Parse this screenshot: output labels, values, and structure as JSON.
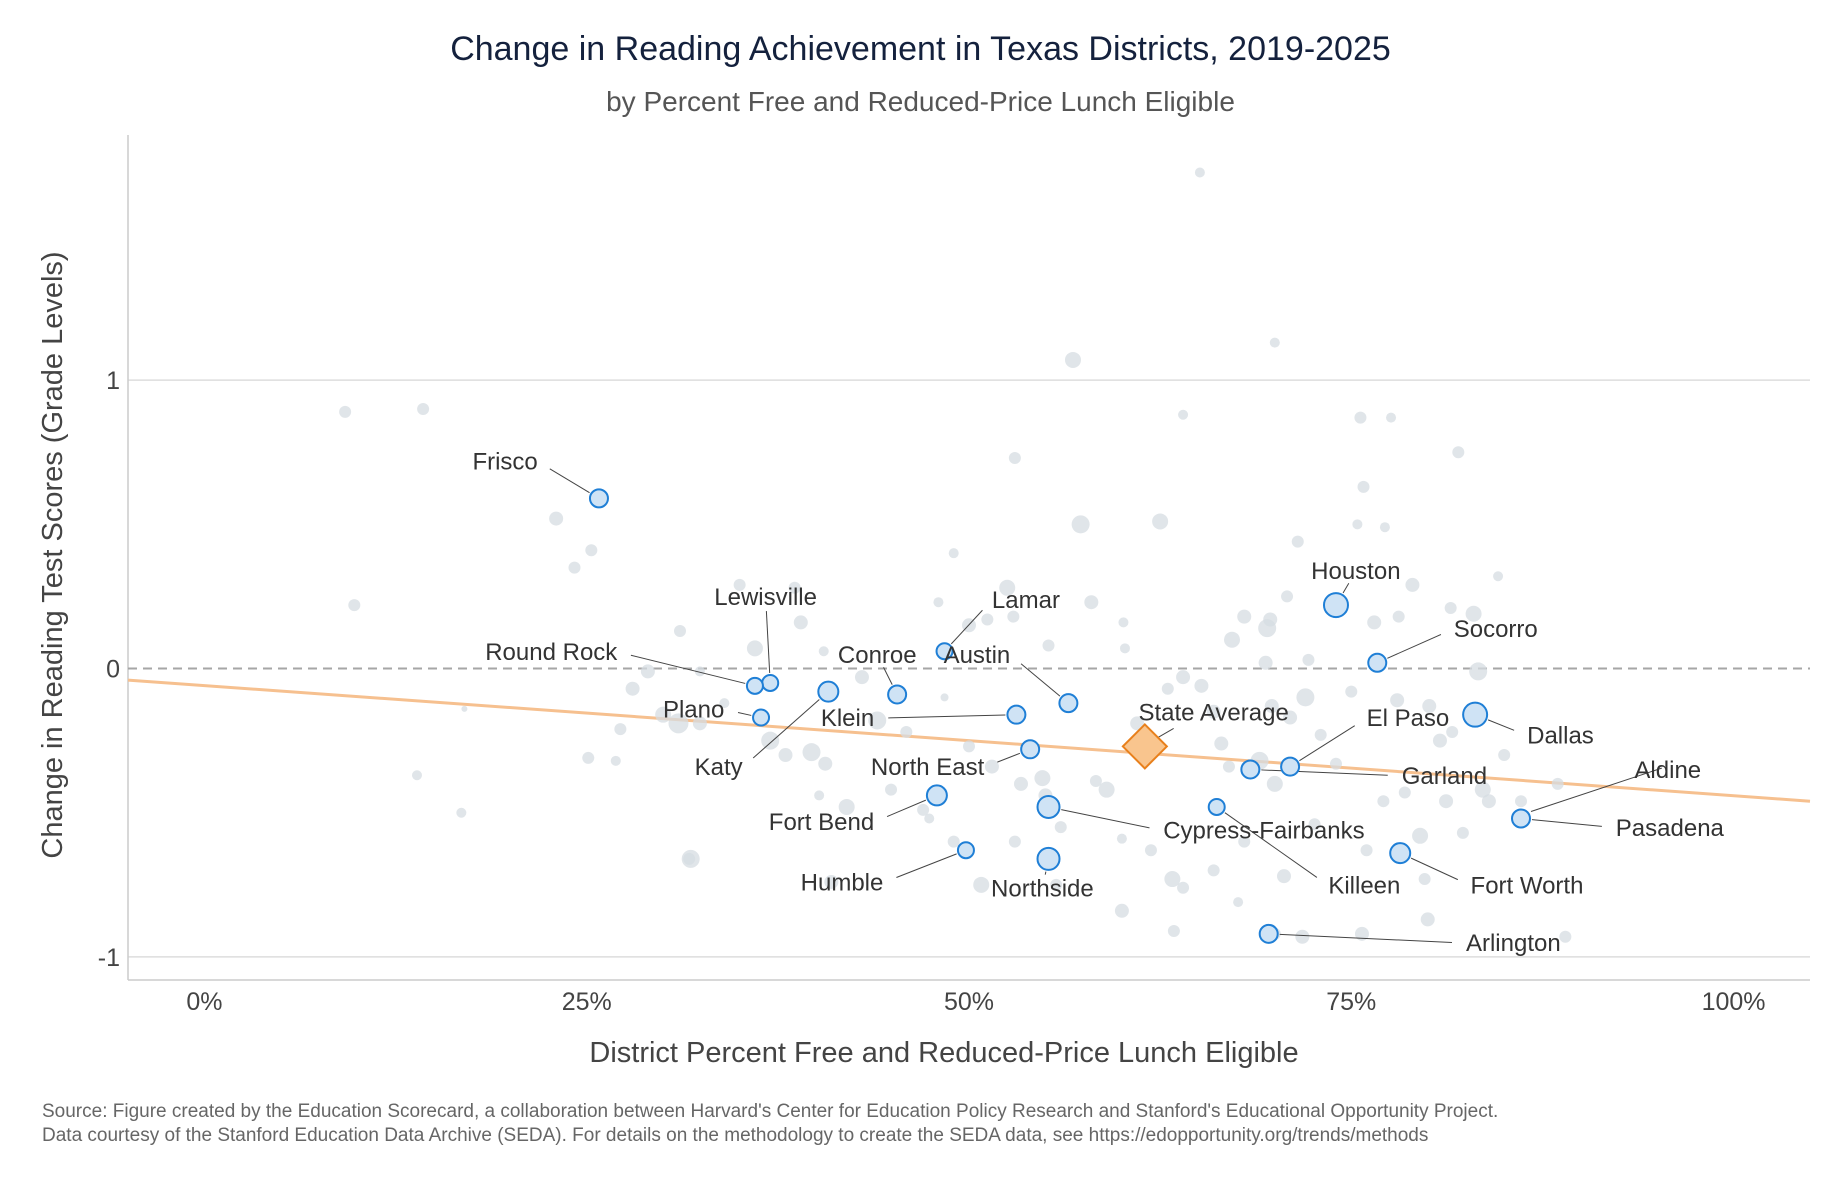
{
  "header": {
    "title": "Change in Reading Achievement in Texas Districts, 2019-2025",
    "subtitle": "by Percent Free and Reduced-Price Lunch Eligible"
  },
  "source": {
    "line1": "Source: Figure created by the Education Scorecard, a collaboration between Harvard's Center for Education Policy Research and Stanford's Educational Opportunity Project.",
    "line2": "Data courtesy of the Stanford Education Data Archive (SEDA). For details on the methodology to create the SEDA data, see https://edopportunity.org/trends/methods"
  },
  "colors": {
    "highlight_fill": "#cfe3f5",
    "highlight_stroke": "#1f7fd6",
    "background_point": "#d5dce2",
    "trend_line": "#f6c08f",
    "state_fill": "#f9c58e",
    "state_stroke": "#e8801c",
    "zero_line": "#a6a6a6",
    "grid": "#dddddd"
  },
  "chart_data": {
    "type": "scatter",
    "title": "Change in Reading Achievement in Texas Districts, 2019-2025",
    "subtitle": "by Percent Free and Reduced-Price Lunch Eligible",
    "xlabel": "District Percent Free and Reduced-Price Lunch Eligible",
    "ylabel": "Change in Reading Test Scores (Grade Levels)",
    "xlim": [
      -0.05,
      1.05
    ],
    "ylim": [
      -1.08,
      1.85
    ],
    "x_ticks": [
      {
        "value": 0,
        "label": "0%"
      },
      {
        "value": 0.25,
        "label": "25%"
      },
      {
        "value": 0.5,
        "label": "50%"
      },
      {
        "value": 0.75,
        "label": "75%"
      },
      {
        "value": 1,
        "label": "100%"
      }
    ],
    "y_ticks": [
      {
        "value": -1,
        "label": "-1"
      },
      {
        "value": 0,
        "label": "0"
      },
      {
        "value": 1,
        "label": "1"
      }
    ],
    "grid": true,
    "reference_line_y": 0,
    "trend_line": {
      "x": [
        -0.05,
        1.05
      ],
      "y": [
        -0.04,
        -0.46
      ]
    },
    "state_average": {
      "label": "State Average",
      "x": 0.615,
      "y": -0.27,
      "label_x": 0.66,
      "label_y": -0.18
    },
    "highlighted": [
      {
        "name": "Frisco",
        "x": 0.258,
        "y": 0.59,
        "size": 9,
        "label_x": 0.218,
        "label_y": 0.69
      },
      {
        "name": "Lewisville",
        "x": 0.37,
        "y": -0.05,
        "size": 8,
        "label_x": 0.367,
        "label_y": 0.22
      },
      {
        "name": "Round Rock",
        "x": 0.36,
        "y": -0.06,
        "size": 8,
        "label_x": 0.27,
        "label_y": 0.03
      },
      {
        "name": "Plano",
        "x": 0.364,
        "y": -0.17,
        "size": 8,
        "label_x": 0.34,
        "label_y": -0.17
      },
      {
        "name": "Katy",
        "x": 0.408,
        "y": -0.08,
        "size": 10,
        "label_x": 0.352,
        "label_y": -0.37
      },
      {
        "name": "Conroe",
        "x": 0.453,
        "y": -0.09,
        "size": 9,
        "label_x": 0.44,
        "label_y": 0.02
      },
      {
        "name": "Lamar",
        "x": 0.484,
        "y": 0.06,
        "size": 8,
        "label_x": 0.515,
        "label_y": 0.21
      },
      {
        "name": "Klein",
        "x": 0.531,
        "y": -0.16,
        "size": 9,
        "label_x": 0.438,
        "label_y": -0.2
      },
      {
        "name": "Austin",
        "x": 0.565,
        "y": -0.12,
        "size": 9,
        "label_x": 0.527,
        "label_y": 0.02
      },
      {
        "name": "North East",
        "x": 0.54,
        "y": -0.28,
        "size": 9,
        "label_x": 0.51,
        "label_y": -0.37
      },
      {
        "name": "Fort Bend",
        "x": 0.479,
        "y": -0.44,
        "size": 10,
        "label_x": 0.438,
        "label_y": -0.56
      },
      {
        "name": "Cypress-Fairbanks",
        "x": 0.552,
        "y": -0.48,
        "size": 11,
        "label_x": 0.627,
        "label_y": -0.59
      },
      {
        "name": "Humble",
        "x": 0.498,
        "y": -0.63,
        "size": 8,
        "label_x": 0.444,
        "label_y": -0.77
      },
      {
        "name": "Northside",
        "x": 0.552,
        "y": -0.66,
        "size": 11,
        "label_x": 0.548,
        "label_y": -0.79
      },
      {
        "name": "Houston",
        "x": 0.74,
        "y": 0.22,
        "size": 12,
        "label_x": 0.753,
        "label_y": 0.31
      },
      {
        "name": "Socorro",
        "x": 0.767,
        "y": 0.02,
        "size": 9,
        "label_x": 0.817,
        "label_y": 0.11
      },
      {
        "name": "El Paso",
        "x": 0.71,
        "y": -0.34,
        "size": 9,
        "label_x": 0.76,
        "label_y": -0.2
      },
      {
        "name": "Garland",
        "x": 0.684,
        "y": -0.35,
        "size": 9,
        "label_x": 0.783,
        "label_y": -0.4
      },
      {
        "name": "Killeen",
        "x": 0.662,
        "y": -0.48,
        "size": 8,
        "label_x": 0.735,
        "label_y": -0.78
      },
      {
        "name": "Dallas",
        "x": 0.831,
        "y": -0.16,
        "size": 12,
        "label_x": 0.865,
        "label_y": -0.26
      },
      {
        "name": "Aldine",
        "x": 0.96,
        "y": -0.38,
        "size": 0,
        "label_x": 0.957,
        "label_y": -0.38
      },
      {
        "name": "Pasadena",
        "x": 0.861,
        "y": -0.52,
        "size": 9,
        "label_x": 0.923,
        "label_y": -0.58
      },
      {
        "name": "Fort Worth",
        "x": 0.782,
        "y": -0.64,
        "size": 10,
        "label_x": 0.828,
        "label_y": -0.78
      },
      {
        "name": "Arlington",
        "x": 0.696,
        "y": -0.92,
        "size": 9,
        "label_x": 0.825,
        "label_y": -0.98
      }
    ],
    "others": [
      [
        0.092,
        0.89,
        6
      ],
      [
        0.143,
        0.9,
        6
      ],
      [
        0.098,
        0.22,
        6
      ],
      [
        0.139,
        -0.37,
        5
      ],
      [
        0.168,
        -0.5,
        5
      ],
      [
        0.17,
        -0.14,
        3
      ],
      [
        0.23,
        0.52,
        7
      ],
      [
        0.242,
        0.35,
        6
      ],
      [
        0.253,
        0.41,
        6
      ],
      [
        0.251,
        -0.31,
        6
      ],
      [
        0.269,
        -0.32,
        5
      ],
      [
        0.272,
        -0.21,
        6
      ],
      [
        0.28,
        -0.07,
        7
      ],
      [
        0.29,
        -0.01,
        7
      ],
      [
        0.3,
        -0.16,
        8
      ],
      [
        0.31,
        -0.19,
        10
      ],
      [
        0.311,
        0.13,
        6
      ],
      [
        0.317,
        -0.66,
        6
      ],
      [
        0.318,
        -0.66,
        9
      ],
      [
        0.324,
        -0.19,
        7
      ],
      [
        0.324,
        -0.01,
        5
      ],
      [
        0.34,
        -0.12,
        5
      ],
      [
        0.35,
        0.29,
        6
      ],
      [
        0.36,
        0.07,
        8
      ],
      [
        0.37,
        -0.25,
        9
      ],
      [
        0.38,
        -0.3,
        7
      ],
      [
        0.386,
        0.28,
        6
      ],
      [
        0.39,
        0.16,
        7
      ],
      [
        0.397,
        -0.29,
        9
      ],
      [
        0.402,
        -0.44,
        5
      ],
      [
        0.405,
        0.06,
        5
      ],
      [
        0.406,
        -0.33,
        7
      ],
      [
        0.41,
        -0.74,
        7
      ],
      [
        0.42,
        -0.48,
        8
      ],
      [
        0.43,
        -0.03,
        7
      ],
      [
        0.44,
        -0.18,
        9
      ],
      [
        0.449,
        -0.42,
        6
      ],
      [
        0.459,
        -0.22,
        6
      ],
      [
        0.47,
        -0.49,
        6
      ],
      [
        0.474,
        -0.52,
        5
      ],
      [
        0.48,
        0.23,
        5
      ],
      [
        0.484,
        -0.1,
        4
      ],
      [
        0.49,
        0.4,
        5
      ],
      [
        0.49,
        -0.6,
        6
      ],
      [
        0.5,
        0.15,
        7
      ],
      [
        0.5,
        -0.27,
        6
      ],
      [
        0.508,
        -0.75,
        8
      ],
      [
        0.512,
        0.17,
        6
      ],
      [
        0.515,
        -0.34,
        7
      ],
      [
        0.525,
        0.28,
        8
      ],
      [
        0.529,
        0.18,
        6
      ],
      [
        0.53,
        -0.6,
        6
      ],
      [
        0.53,
        0.73,
        6
      ],
      [
        0.534,
        -0.4,
        7
      ],
      [
        0.54,
        -0.28,
        6
      ],
      [
        0.548,
        -0.38,
        8
      ],
      [
        0.55,
        -0.44,
        7
      ],
      [
        0.552,
        0.08,
        6
      ],
      [
        0.557,
        -0.75,
        6
      ],
      [
        0.56,
        -0.55,
        6
      ],
      [
        0.568,
        1.07,
        8
      ],
      [
        0.573,
        0.5,
        9
      ],
      [
        0.58,
        0.23,
        7
      ],
      [
        0.583,
        -0.39,
        6
      ],
      [
        0.59,
        -0.42,
        8
      ],
      [
        0.6,
        -0.59,
        5
      ],
      [
        0.6,
        -0.84,
        7
      ],
      [
        0.601,
        0.16,
        5
      ],
      [
        0.602,
        0.07,
        5
      ],
      [
        0.61,
        -0.19,
        7
      ],
      [
        0.615,
        -0.28,
        6
      ],
      [
        0.619,
        -0.63,
        6
      ],
      [
        0.625,
        0.51,
        8
      ],
      [
        0.63,
        -0.07,
        6
      ],
      [
        0.633,
        -0.73,
        8
      ],
      [
        0.634,
        -0.91,
        6
      ],
      [
        0.64,
        -0.03,
        7
      ],
      [
        0.64,
        0.88,
        5
      ],
      [
        0.651,
        1.72,
        5
      ],
      [
        0.652,
        -0.06,
        7
      ],
      [
        0.66,
        -0.15,
        7
      ],
      [
        0.665,
        -0.26,
        7
      ],
      [
        0.67,
        -0.34,
        6
      ],
      [
        0.672,
        0.1,
        8
      ],
      [
        0.676,
        -0.81,
        5
      ],
      [
        0.68,
        0.18,
        7
      ],
      [
        0.69,
        -0.32,
        9
      ],
      [
        0.694,
        0.02,
        7
      ],
      [
        0.695,
        0.14,
        9
      ],
      [
        0.697,
        0.17,
        7
      ],
      [
        0.698,
        -0.13,
        7
      ],
      [
        0.7,
        -0.4,
        8
      ],
      [
        0.7,
        1.13,
        5
      ],
      [
        0.706,
        -0.72,
        7
      ],
      [
        0.708,
        0.25,
        6
      ],
      [
        0.71,
        -0.17,
        7
      ],
      [
        0.715,
        0.44,
        6
      ],
      [
        0.72,
        -0.1,
        9
      ],
      [
        0.722,
        0.03,
        6
      ],
      [
        0.726,
        -0.54,
        6
      ],
      [
        0.73,
        -0.23,
        6
      ],
      [
        0.74,
        -0.33,
        6
      ],
      [
        0.75,
        -0.08,
        6
      ],
      [
        0.754,
        0.5,
        5
      ],
      [
        0.756,
        0.87,
        6
      ],
      [
        0.758,
        0.63,
        6
      ],
      [
        0.76,
        -0.63,
        6
      ],
      [
        0.765,
        0.16,
        7
      ],
      [
        0.771,
        -0.46,
        6
      ],
      [
        0.772,
        0.49,
        5
      ],
      [
        0.776,
        0.87,
        5
      ],
      [
        0.78,
        -0.11,
        7
      ],
      [
        0.781,
        0.18,
        6
      ],
      [
        0.785,
        -0.43,
        6
      ],
      [
        0.79,
        0.29,
        7
      ],
      [
        0.795,
        -0.58,
        8
      ],
      [
        0.798,
        -0.73,
        6
      ],
      [
        0.8,
        -0.87,
        7
      ],
      [
        0.801,
        -0.13,
        7
      ],
      [
        0.808,
        -0.25,
        7
      ],
      [
        0.812,
        -0.46,
        7
      ],
      [
        0.815,
        0.21,
        6
      ],
      [
        0.816,
        -0.22,
        6
      ],
      [
        0.82,
        0.75,
        6
      ],
      [
        0.823,
        -0.57,
        6
      ],
      [
        0.83,
        0.19,
        8
      ],
      [
        0.833,
        -0.01,
        9
      ],
      [
        0.836,
        -0.42,
        8
      ],
      [
        0.84,
        -0.46,
        7
      ],
      [
        0.846,
        0.32,
        5
      ],
      [
        0.85,
        -0.3,
        6
      ],
      [
        0.861,
        -0.46,
        6
      ],
      [
        0.885,
        -0.4,
        6
      ],
      [
        0.89,
        -0.93,
        6
      ],
      [
        0.7,
        -0.92,
        6
      ],
      [
        0.718,
        -0.93,
        7
      ],
      [
        0.757,
        -0.92,
        7
      ],
      [
        0.66,
        -0.7,
        6
      ],
      [
        0.64,
        -0.76,
        6
      ],
      [
        0.68,
        -0.6,
        6
      ]
    ]
  }
}
